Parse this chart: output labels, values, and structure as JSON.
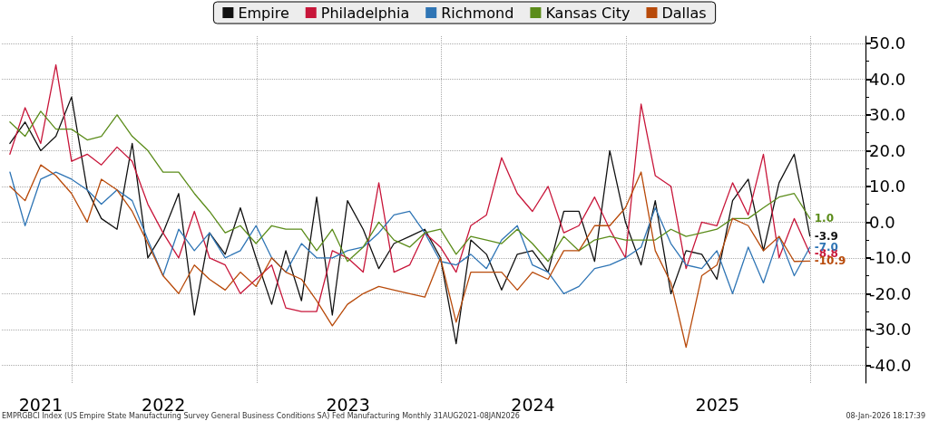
{
  "chart_data": {
    "type": "line",
    "x": [
      "2021-08-31",
      "2021-09-30",
      "2021-10-31",
      "2021-11-30",
      "2021-12-31",
      "2022-01-31",
      "2022-02-28",
      "2022-03-31",
      "2022-04-30",
      "2022-05-31",
      "2022-06-30",
      "2022-07-31",
      "2022-08-31",
      "2022-09-30",
      "2022-10-31",
      "2022-11-30",
      "2022-12-31",
      "2023-01-31",
      "2023-02-28",
      "2023-03-31",
      "2023-04-30",
      "2023-05-31",
      "2023-06-30",
      "2023-07-31",
      "2023-08-31",
      "2023-09-30",
      "2023-10-31",
      "2023-11-30",
      "2023-12-31",
      "2024-01-31",
      "2024-02-29",
      "2024-03-31",
      "2024-04-30",
      "2024-05-31",
      "2024-06-30",
      "2024-07-31",
      "2024-08-31",
      "2024-09-30",
      "2024-10-31",
      "2024-11-30",
      "2024-12-31",
      "2025-01-31",
      "2025-02-28",
      "2025-03-31",
      "2025-04-30",
      "2025-05-31",
      "2025-06-30",
      "2025-07-31",
      "2025-08-31",
      "2025-09-30",
      "2025-10-31",
      "2025-11-30",
      "2025-12-31"
    ],
    "series": [
      {
        "name": "Empire",
        "color": "#111111",
        "values": [
          22,
          28,
          20,
          24,
          35,
          9,
          1,
          -2,
          22,
          -10,
          -3,
          8,
          -26,
          -3,
          -9,
          4,
          -10,
          -23,
          -8,
          -22,
          7,
          -26,
          6,
          -2,
          -13,
          -6,
          -4,
          -2,
          -10,
          -34,
          -5,
          -9,
          -19,
          -9,
          -8,
          -14,
          3,
          3,
          -11,
          20,
          0,
          -12,
          6,
          -20,
          -8,
          -9,
          -16,
          6,
          12,
          -8,
          11,
          19,
          -3.9
        ],
        "value_labels": [
          null,
          null,
          null,
          null,
          null,
          null,
          null,
          null,
          null,
          null,
          null,
          null,
          null,
          null,
          null,
          null,
          null,
          null,
          null,
          null,
          null,
          null,
          null,
          null,
          null,
          null,
          null,
          null,
          null,
          null,
          null,
          null,
          null,
          null,
          null,
          null,
          null,
          null,
          null,
          null,
          null,
          null,
          null,
          null,
          null,
          null,
          null,
          null,
          null,
          null,
          null,
          null,
          "-3.9"
        ]
      },
      {
        "name": "Philadelphia",
        "color": "#c8163a",
        "values": [
          19,
          32,
          22,
          44,
          17,
          19,
          16,
          21,
          17,
          5,
          -3,
          -10,
          3,
          -10,
          -12,
          -20,
          -16,
          -12,
          -24,
          -25,
          -25,
          -8,
          -10,
          -14,
          11,
          -14,
          -12,
          -3,
          -7,
          -14,
          -1,
          2,
          18,
          8,
          3,
          10,
          -3,
          -1,
          7,
          -2,
          -10,
          33,
          13,
          10,
          -13,
          0,
          -1,
          11,
          2,
          19,
          -10,
          1,
          -8.8
        ],
        "value_labels": [
          null,
          null,
          null,
          null,
          null,
          null,
          null,
          null,
          null,
          null,
          null,
          null,
          null,
          null,
          null,
          null,
          null,
          null,
          null,
          null,
          null,
          null,
          null,
          null,
          null,
          null,
          null,
          null,
          null,
          null,
          null,
          null,
          null,
          null,
          null,
          null,
          null,
          null,
          null,
          null,
          null,
          null,
          null,
          null,
          null,
          null,
          null,
          null,
          null,
          null,
          null,
          null,
          "-8.8"
        ]
      },
      {
        "name": "Richmond",
        "color": "#2f75b5",
        "values": [
          14,
          -1,
          12,
          14,
          12,
          9,
          5,
          9,
          6,
          -5,
          -15,
          -2,
          -8,
          -3,
          -10,
          -8,
          -1,
          -10,
          -14,
          -6,
          -10,
          -10,
          -8,
          -7,
          -3,
          2,
          3,
          -3,
          -11,
          -12,
          -9,
          -13,
          -5,
          -1,
          -12,
          -14,
          -20,
          -18,
          -13,
          -12,
          -10,
          -7,
          4,
          -6,
          -12,
          -13,
          -8,
          -20,
          -7,
          -17,
          -4,
          -15,
          -7.0
        ],
        "value_labels": [
          null,
          null,
          null,
          null,
          null,
          null,
          null,
          null,
          null,
          null,
          null,
          null,
          null,
          null,
          null,
          null,
          null,
          null,
          null,
          null,
          null,
          null,
          null,
          null,
          null,
          null,
          null,
          null,
          null,
          null,
          null,
          null,
          null,
          null,
          null,
          null,
          null,
          null,
          null,
          null,
          null,
          null,
          null,
          null,
          null,
          null,
          null,
          null,
          null,
          null,
          null,
          null,
          "-7.0"
        ]
      },
      {
        "name": "Kansas City",
        "color": "#5b8c1a",
        "values": [
          28,
          24,
          31,
          26,
          26,
          23,
          24,
          30,
          24,
          20,
          14,
          14,
          8,
          3,
          -3,
          -1,
          -6,
          -1,
          -2,
          -2,
          -8,
          -2,
          -11,
          -7,
          0,
          -5,
          -7,
          -3,
          -2,
          -9,
          -4,
          -5,
          -6,
          -2,
          -6,
          -11,
          -4,
          -8,
          -5,
          -4,
          -5,
          -5,
          -5,
          -2,
          -4,
          -3,
          -2,
          1,
          1,
          4,
          7,
          8,
          1.0
        ],
        "value_labels": [
          null,
          null,
          null,
          null,
          null,
          null,
          null,
          null,
          null,
          null,
          null,
          null,
          null,
          null,
          null,
          null,
          null,
          null,
          null,
          null,
          null,
          null,
          null,
          null,
          null,
          null,
          null,
          null,
          null,
          null,
          null,
          null,
          null,
          null,
          null,
          null,
          null,
          null,
          null,
          null,
          null,
          null,
          null,
          null,
          null,
          null,
          null,
          null,
          null,
          null,
          null,
          null,
          "1.0"
        ]
      },
      {
        "name": "Dallas",
        "color": "#b84a0a",
        "values": [
          10,
          6,
          16,
          13,
          8,
          0,
          12,
          9,
          3,
          -6,
          -15,
          -20,
          -12,
          -16,
          -19,
          -14,
          -18,
          -10,
          -14,
          -16,
          -22,
          -29,
          -23,
          -20,
          -18,
          -19,
          -20,
          -21,
          -10,
          -28,
          -14,
          -14,
          -14,
          -19,
          -14,
          -16,
          -8,
          -8,
          -1,
          -1,
          4,
          14,
          -8,
          -17,
          -35,
          -15,
          -12,
          1,
          -1,
          -8,
          -4,
          -11,
          -10.9
        ],
        "value_labels": [
          null,
          null,
          null,
          null,
          null,
          null,
          null,
          null,
          null,
          null,
          null,
          null,
          null,
          null,
          null,
          null,
          null,
          null,
          null,
          null,
          null,
          null,
          null,
          null,
          null,
          null,
          null,
          null,
          null,
          null,
          null,
          null,
          null,
          null,
          null,
          null,
          null,
          null,
          null,
          null,
          null,
          null,
          null,
          null,
          null,
          null,
          null,
          null,
          null,
          null,
          null,
          null,
          "-10.9"
        ]
      }
    ],
    "xlim": [
      "2021-08-15",
      "2026-04-20"
    ],
    "xticks": [
      {
        "value": "2021-10-31",
        "label": "2021"
      },
      {
        "value": "2022-01-01",
        "label": null
      },
      {
        "value": "2022-07-01",
        "label": "2022"
      },
      {
        "value": "2023-01-01",
        "label": null
      },
      {
        "value": "2023-07-01",
        "label": "2023"
      },
      {
        "value": "2024-01-01",
        "label": null
      },
      {
        "value": "2024-07-01",
        "label": "2024"
      },
      {
        "value": "2025-01-01",
        "label": null
      },
      {
        "value": "2025-07-01",
        "label": "2025"
      },
      {
        "value": "2026-01-01",
        "label": null
      }
    ],
    "ylim": [
      -45,
      52
    ],
    "yticks": [
      {
        "value": -40,
        "label": "-40.0"
      },
      {
        "value": -35,
        "label": null
      },
      {
        "value": -30,
        "label": "-30.0"
      },
      {
        "value": -25,
        "label": null
      },
      {
        "value": -20,
        "label": "-20.0"
      },
      {
        "value": -15,
        "label": null
      },
      {
        "value": -10,
        "label": "-10.0"
      },
      {
        "value": -5,
        "label": null
      },
      {
        "value": 0,
        "label": "0.0"
      },
      {
        "value": 5,
        "label": null
      },
      {
        "value": 10,
        "label": "10.0"
      },
      {
        "value": 15,
        "label": null
      },
      {
        "value": 20,
        "label": "20.0"
      },
      {
        "value": 25,
        "label": null
      },
      {
        "value": 30,
        "label": "30.0"
      },
      {
        "value": 35,
        "label": null
      },
      {
        "value": 40,
        "label": "40.0"
      },
      {
        "value": 45,
        "label": null
      },
      {
        "value": 50,
        "label": "50.0"
      }
    ],
    "grid": true,
    "marker": "none",
    "legend": "top",
    "annotations": [
      "EMPRGBCI Index (US Empire State Manufacturing Survey General Business Conditions SA) Fed Manufacturing Monthly 31AUG2021-08JAN2026",
      "08-Jan-2026 18:17:39"
    ]
  }
}
